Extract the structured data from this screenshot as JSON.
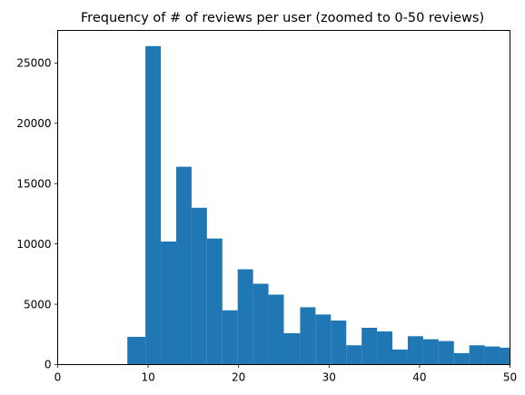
{
  "chart_data": {
    "type": "bar",
    "title": "Frequency of # of reviews per user (zoomed to 0-50 reviews)",
    "xlabel": "",
    "ylabel": "",
    "xlim": [
      0,
      50
    ],
    "ylim": [
      0,
      27700
    ],
    "bar_color": "#1f77b4",
    "grid": false,
    "x_ticks": [
      0,
      10,
      20,
      30,
      40,
      50
    ],
    "y_ticks": [
      0,
      5000,
      10000,
      15000,
      20000,
      25000
    ],
    "bins": [
      {
        "x0": 7.7,
        "x1": 9.7,
        "value": 2300
      },
      {
        "x0": 9.7,
        "x1": 11.4,
        "value": 26400
      },
      {
        "x0": 11.4,
        "x1": 13.1,
        "value": 10200
      },
      {
        "x0": 13.1,
        "x1": 14.8,
        "value": 16400
      },
      {
        "x0": 14.8,
        "x1": 16.5,
        "value": 13000
      },
      {
        "x0": 16.5,
        "x1": 18.2,
        "value": 10450
      },
      {
        "x0": 18.2,
        "x1": 19.9,
        "value": 4500
      },
      {
        "x0": 19.9,
        "x1": 21.6,
        "value": 7900
      },
      {
        "x0": 21.6,
        "x1": 23.3,
        "value": 6700
      },
      {
        "x0": 23.3,
        "x1": 25.0,
        "value": 5800
      },
      {
        "x0": 25.0,
        "x1": 26.8,
        "value": 2600
      },
      {
        "x0": 26.8,
        "x1": 28.5,
        "value": 4750
      },
      {
        "x0": 28.5,
        "x1": 30.2,
        "value": 4150
      },
      {
        "x0": 30.2,
        "x1": 31.9,
        "value": 3650
      },
      {
        "x0": 31.9,
        "x1": 33.6,
        "value": 1600
      },
      {
        "x0": 33.6,
        "x1": 35.3,
        "value": 3050
      },
      {
        "x0": 35.3,
        "x1": 37.0,
        "value": 2750
      },
      {
        "x0": 37.0,
        "x1": 38.7,
        "value": 1250
      },
      {
        "x0": 38.7,
        "x1": 40.4,
        "value": 2350
      },
      {
        "x0": 40.4,
        "x1": 42.1,
        "value": 2100
      },
      {
        "x0": 42.1,
        "x1": 43.8,
        "value": 1950
      },
      {
        "x0": 43.8,
        "x1": 45.5,
        "value": 950
      },
      {
        "x0": 45.5,
        "x1": 47.2,
        "value": 1600
      },
      {
        "x0": 47.2,
        "x1": 48.9,
        "value": 1500
      },
      {
        "x0": 48.9,
        "x1": 50.6,
        "value": 1400
      }
    ]
  }
}
